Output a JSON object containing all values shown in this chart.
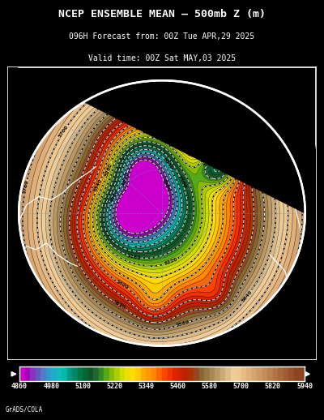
{
  "title_line1": "NCEP ENSEMBLE MEAN – 500mb Z (m)",
  "title_line2": "096H Forecast from: 00Z Tue APR,29 2025",
  "title_line3": "Valid time: 00Z Sat MAY,03 2025",
  "background_color": "#000000",
  "colorbar_levels": [
    4860,
    4980,
    5100,
    5220,
    5340,
    5460,
    5580,
    5700,
    5820,
    5940
  ],
  "fill_colors": [
    "#CC00CC",
    "#AA00BB",
    "#8833BB",
    "#6655BB",
    "#5577CC",
    "#3399CC",
    "#22AACC",
    "#11BBBB",
    "#00BBAA",
    "#009988",
    "#008866",
    "#007744",
    "#006633",
    "#115522",
    "#226633",
    "#338822",
    "#55AA11",
    "#88BB00",
    "#AACC00",
    "#CCDD00",
    "#EEDD00",
    "#FFDD00",
    "#FFCC00",
    "#FFAA00",
    "#FF9900",
    "#FF8800",
    "#FF6600",
    "#FF4400",
    "#EE3300",
    "#DD2200",
    "#CC2200",
    "#BB2200",
    "#AA3300",
    "#994422",
    "#886633",
    "#997744",
    "#AA8855",
    "#BB9966",
    "#CCAA77",
    "#DDBB88",
    "#EECC99",
    "#F0C890",
    "#E8BC85",
    "#DFB07A",
    "#D6A46F",
    "#CD9864",
    "#C48C59",
    "#BB8050",
    "#B27445",
    "#A9683C",
    "#A05C33",
    "#97502A",
    "#8E4421"
  ],
  "contour_step": 20,
  "contour_min": 4860,
  "contour_max": 5940,
  "watermark": "GrADS/COLA",
  "label_color": "#ffffff"
}
